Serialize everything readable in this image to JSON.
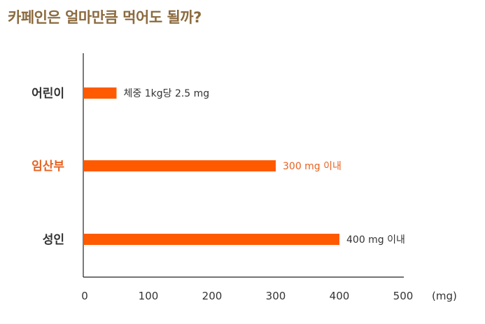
{
  "page": {
    "title": "카페인은 얼마만큼 먹어도 될까?"
  },
  "colors": {
    "title": "#8b6a3e",
    "bar": "#ff5a00",
    "highlight": "#e8611f",
    "text": "#333333",
    "axis": "#222222"
  },
  "chart_data": {
    "type": "bar",
    "orientation": "horizontal",
    "title": "카페인은 얼마만큼 먹어도 될까?",
    "categories": [
      "어린이",
      "임산부",
      "성인"
    ],
    "values": [
      50,
      300,
      400
    ],
    "highlight_category": "임산부",
    "data_labels": [
      "체중 1kg당 2.5 mg",
      "300 mg 이내",
      "400 mg 이내"
    ],
    "xlim": [
      0,
      500
    ],
    "xticks": [
      0,
      100,
      200,
      300,
      400,
      500
    ],
    "xtick_labels": [
      "0",
      "100",
      "200",
      "300",
      "400",
      "500"
    ],
    "xunit": "(mg)",
    "xlabel": "",
    "ylabel": "",
    "grid": false
  }
}
